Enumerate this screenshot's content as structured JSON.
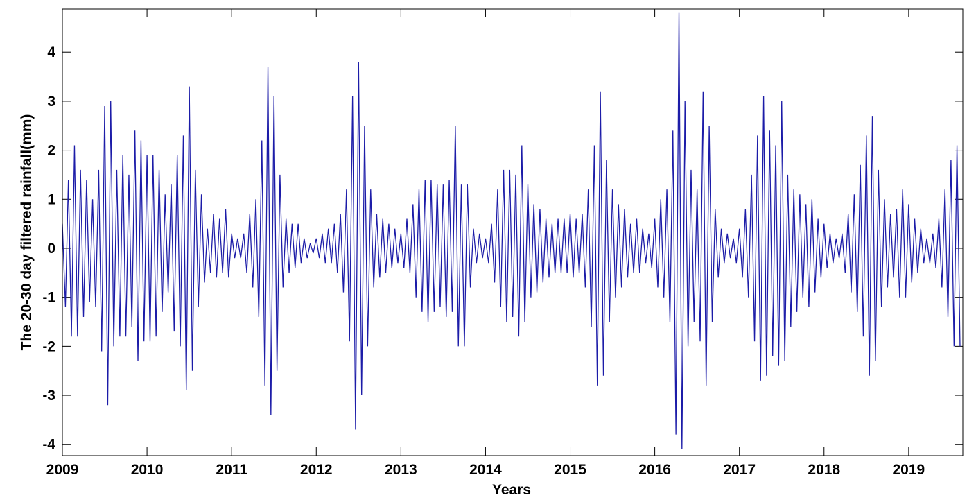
{
  "chart_data": {
    "type": "line",
    "xlabel": "Years",
    "ylabel": "The 20-30 day filtered rainfall(mm)",
    "color": "#1c1ca8",
    "xlim": [
      2009,
      2019.64
    ],
    "ylim": [
      -4.23,
      4.88
    ],
    "xticks": [
      2009,
      2010,
      2011,
      2012,
      2013,
      2014,
      2015,
      2016,
      2017,
      2018,
      2019
    ],
    "yticks": [
      -4,
      -3,
      -2,
      -1,
      0,
      1,
      2,
      3,
      4
    ],
    "grid": false,
    "x": [
      2009,
      2009.036,
      2009.071,
      2009.107,
      2009.143,
      2009.179,
      2009.214,
      2009.25,
      2009.286,
      2009.321,
      2009.357,
      2009.393,
      2009.429,
      2009.464,
      2009.5,
      2009.536,
      2009.571,
      2009.607,
      2009.643,
      2009.679,
      2009.714,
      2009.75,
      2009.786,
      2009.821,
      2009.857,
      2009.893,
      2009.929,
      2009.964,
      2010,
      2010.036,
      2010.071,
      2010.107,
      2010.143,
      2010.179,
      2010.214,
      2010.25,
      2010.286,
      2010.321,
      2010.357,
      2010.393,
      2010.429,
      2010.464,
      2010.5,
      2010.536,
      2010.571,
      2010.607,
      2010.643,
      2010.679,
      2010.714,
      2010.75,
      2010.786,
      2010.821,
      2010.857,
      2010.893,
      2010.929,
      2010.964,
      2011,
      2011.036,
      2011.071,
      2011.107,
      2011.143,
      2011.179,
      2011.214,
      2011.25,
      2011.286,
      2011.321,
      2011.357,
      2011.393,
      2011.429,
      2011.464,
      2011.5,
      2011.536,
      2011.571,
      2011.607,
      2011.643,
      2011.679,
      2011.714,
      2011.75,
      2011.786,
      2011.821,
      2011.857,
      2011.893,
      2011.929,
      2011.964,
      2012,
      2012.036,
      2012.071,
      2012.107,
      2012.143,
      2012.179,
      2012.214,
      2012.25,
      2012.286,
      2012.321,
      2012.357,
      2012.393,
      2012.429,
      2012.464,
      2012.5,
      2012.536,
      2012.571,
      2012.607,
      2012.643,
      2012.679,
      2012.714,
      2012.75,
      2012.786,
      2012.821,
      2012.857,
      2012.893,
      2012.929,
      2012.964,
      2013,
      2013.036,
      2013.071,
      2013.107,
      2013.143,
      2013.179,
      2013.214,
      2013.25,
      2013.286,
      2013.321,
      2013.357,
      2013.393,
      2013.429,
      2013.464,
      2013.5,
      2013.536,
      2013.571,
      2013.607,
      2013.643,
      2013.679,
      2013.714,
      2013.75,
      2013.786,
      2013.821,
      2013.857,
      2013.893,
      2013.929,
      2013.964,
      2014,
      2014.036,
      2014.071,
      2014.107,
      2014.143,
      2014.179,
      2014.214,
      2014.25,
      2014.286,
      2014.321,
      2014.357,
      2014.393,
      2014.429,
      2014.464,
      2014.5,
      2014.536,
      2014.571,
      2014.607,
      2014.643,
      2014.679,
      2014.714,
      2014.75,
      2014.786,
      2014.821,
      2014.857,
      2014.893,
      2014.929,
      2014.964,
      2015,
      2015.036,
      2015.071,
      2015.107,
      2015.143,
      2015.179,
      2015.214,
      2015.25,
      2015.286,
      2015.321,
      2015.357,
      2015.393,
      2015.429,
      2015.464,
      2015.5,
      2015.536,
      2015.571,
      2015.607,
      2015.643,
      2015.679,
      2015.714,
      2015.75,
      2015.786,
      2015.821,
      2015.857,
      2015.893,
      2015.929,
      2015.964,
      2016,
      2016.036,
      2016.071,
      2016.107,
      2016.143,
      2016.179,
      2016.214,
      2016.25,
      2016.286,
      2016.321,
      2016.357,
      2016.393,
      2016.429,
      2016.464,
      2016.5,
      2016.536,
      2016.571,
      2016.607,
      2016.643,
      2016.679,
      2016.714,
      2016.75,
      2016.786,
      2016.821,
      2016.857,
      2016.893,
      2016.929,
      2016.964,
      2017,
      2017.036,
      2017.071,
      2017.107,
      2017.143,
      2017.179,
      2017.214,
      2017.25,
      2017.286,
      2017.321,
      2017.357,
      2017.393,
      2017.429,
      2017.464,
      2017.5,
      2017.536,
      2017.571,
      2017.607,
      2017.643,
      2017.679,
      2017.714,
      2017.75,
      2017.786,
      2017.821,
      2017.857,
      2017.893,
      2017.929,
      2017.964,
      2018,
      2018.036,
      2018.071,
      2018.107,
      2018.143,
      2018.179,
      2018.214,
      2018.25,
      2018.286,
      2018.321,
      2018.357,
      2018.393,
      2018.429,
      2018.464,
      2018.5,
      2018.536,
      2018.571,
      2018.607,
      2018.643,
      2018.679,
      2018.714,
      2018.75,
      2018.786,
      2018.821,
      2018.857,
      2018.893,
      2018.929,
      2018.964,
      2019,
      2019.036,
      2019.071,
      2019.107,
      2019.143,
      2019.179,
      2019.214,
      2019.25,
      2019.286,
      2019.321,
      2019.357,
      2019.393,
      2019.429,
      2019.464,
      2019.5,
      2019.536,
      2019.571,
      2019.607
    ],
    "values": [
      0.5,
      -1.2,
      1.4,
      -1.8,
      2.1,
      -1.8,
      1.6,
      -1.4,
      1.4,
      -1.1,
      1.0,
      -1.2,
      1.6,
      -2.1,
      2.9,
      -3.2,
      3.0,
      -2.0,
      1.6,
      -1.8,
      1.9,
      -1.8,
      1.5,
      -1.6,
      2.4,
      -2.3,
      2.2,
      -1.9,
      1.9,
      -1.9,
      1.9,
      -1.8,
      1.6,
      -1.3,
      1.1,
      -0.9,
      1.3,
      -1.7,
      1.9,
      -2.0,
      2.3,
      -2.9,
      3.3,
      -2.5,
      1.6,
      -1.2,
      1.1,
      -0.7,
      0.4,
      -0.5,
      0.7,
      -0.6,
      0.6,
      -0.5,
      0.8,
      -0.6,
      0.3,
      -0.2,
      0.2,
      -0.2,
      0.3,
      -0.5,
      0.7,
      -0.8,
      1.0,
      -1.4,
      2.2,
      -2.8,
      3.7,
      -3.4,
      3.1,
      -2.5,
      1.5,
      -0.8,
      0.6,
      -0.5,
      0.5,
      -0.4,
      0.5,
      -0.3,
      0.2,
      -0.2,
      0.1,
      -0.1,
      0.2,
      -0.2,
      0.3,
      -0.3,
      0.4,
      -0.3,
      0.5,
      -0.5,
      0.7,
      -0.9,
      1.2,
      -1.9,
      3.1,
      -3.7,
      3.8,
      -3.0,
      2.5,
      -2.0,
      1.2,
      -0.8,
      0.7,
      -0.6,
      0.6,
      -0.5,
      0.5,
      -0.4,
      0.4,
      -0.3,
      0.3,
      -0.4,
      0.6,
      -0.5,
      0.9,
      -1.0,
      1.2,
      -1.3,
      1.4,
      -1.5,
      1.4,
      -1.3,
      1.3,
      -1.2,
      1.3,
      -1.4,
      1.4,
      -1.3,
      2.5,
      -2.0,
      1.3,
      -2.0,
      1.3,
      -0.8,
      0.4,
      -0.3,
      0.3,
      -0.2,
      0.2,
      -0.3,
      0.5,
      -0.7,
      1.2,
      -1.2,
      1.6,
      -1.5,
      1.6,
      -1.4,
      1.5,
      -1.8,
      2.1,
      -1.5,
      1.3,
      -1.0,
      0.9,
      -0.9,
      0.8,
      -0.7,
      0.6,
      -0.6,
      0.5,
      -0.5,
      0.6,
      -0.5,
      0.6,
      -0.5,
      0.7,
      -0.6,
      0.6,
      -0.5,
      0.7,
      -0.8,
      1.2,
      -1.6,
      2.1,
      -2.8,
      3.2,
      -2.6,
      1.8,
      -1.5,
      1.2,
      -1.0,
      0.9,
      -0.8,
      0.8,
      -0.6,
      0.5,
      -0.5,
      0.6,
      -0.5,
      0.4,
      -0.3,
      0.3,
      -0.4,
      0.6,
      -0.8,
      1.0,
      -1.0,
      1.2,
      -1.5,
      2.4,
      -3.8,
      4.8,
      -4.1,
      3.0,
      -2.0,
      1.6,
      -1.5,
      1.2,
      -1.9,
      3.2,
      -2.8,
      2.5,
      -1.5,
      0.8,
      -0.6,
      0.4,
      -0.3,
      0.3,
      -0.2,
      0.2,
      -0.3,
      0.4,
      -0.6,
      0.8,
      -1.0,
      1.5,
      -1.9,
      2.3,
      -2.7,
      3.1,
      -2.6,
      2.4,
      -2.2,
      2.1,
      -2.4,
      3.0,
      -2.3,
      1.5,
      -1.6,
      1.2,
      -1.3,
      1.1,
      -1.0,
      0.9,
      -1.2,
      1.0,
      -0.9,
      0.6,
      -0.6,
      0.5,
      -0.4,
      0.3,
      -0.3,
      0.2,
      -0.2,
      0.3,
      -0.5,
      0.7,
      -0.9,
      1.1,
      -1.3,
      1.7,
      -1.8,
      2.3,
      -2.6,
      2.7,
      -2.3,
      1.6,
      -1.2,
      1.0,
      -0.8,
      0.7,
      -0.6,
      0.8,
      -1.0,
      1.2,
      -1.0,
      0.9,
      -0.7,
      0.6,
      -0.5,
      0.4,
      -0.3,
      0.2,
      -0.3,
      0.3,
      -0.4,
      0.6,
      -0.8,
      1.2,
      -1.4,
      1.8,
      -2.0,
      2.1,
      -2.0
    ]
  }
}
